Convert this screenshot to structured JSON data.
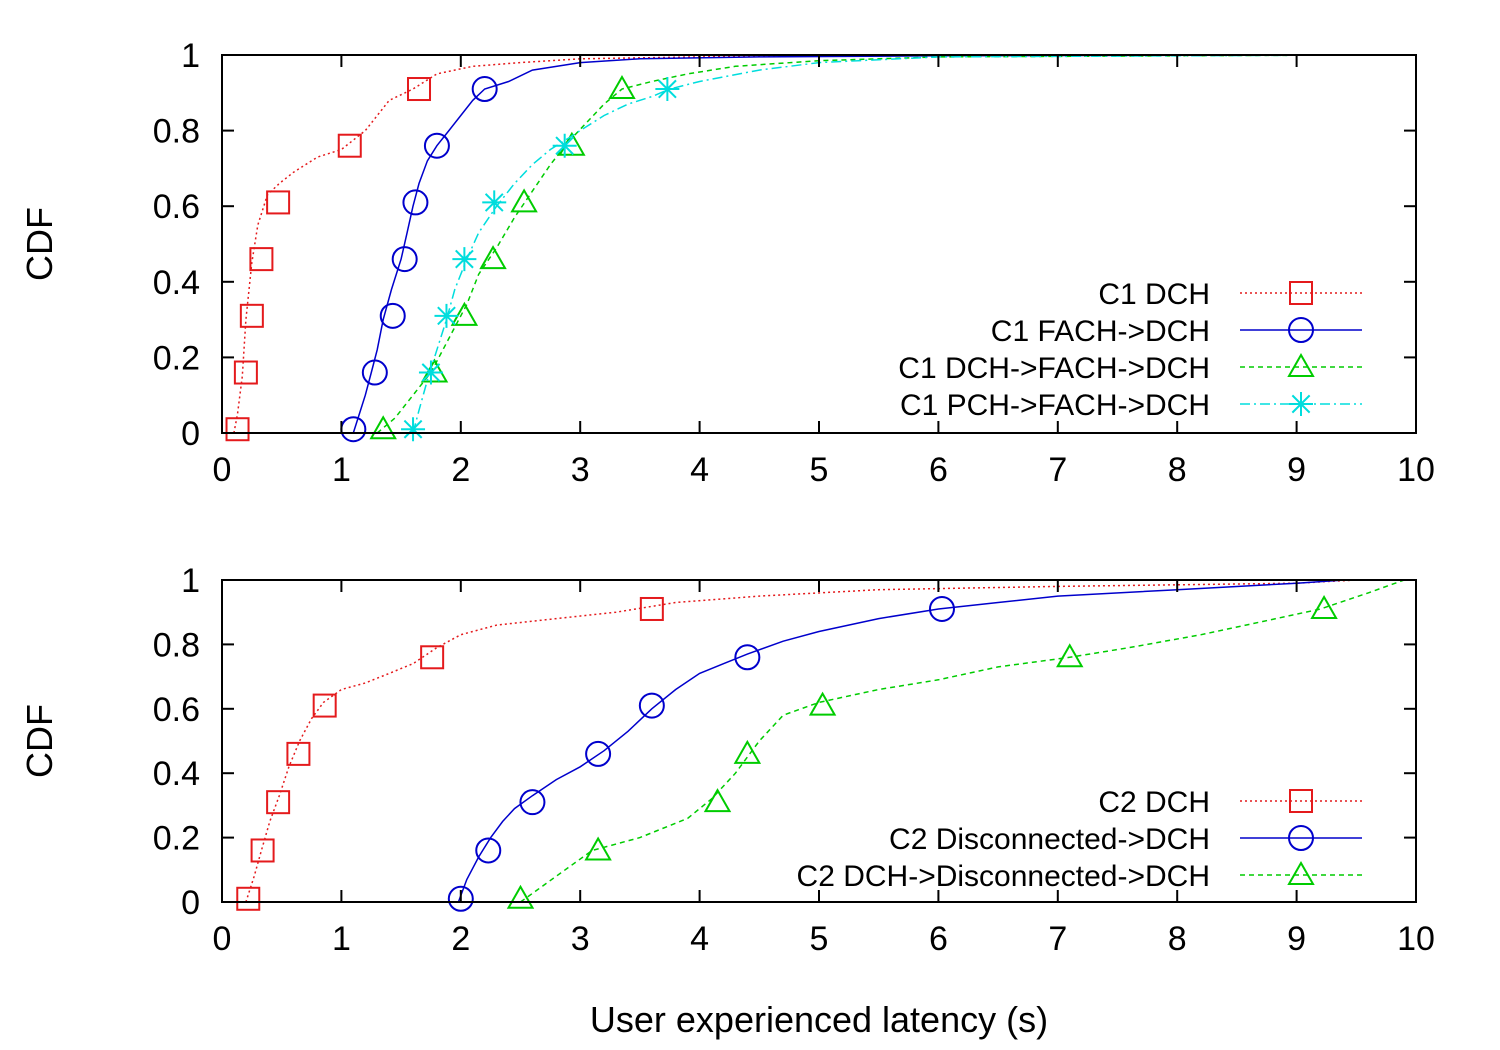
{
  "chart_data": [
    {
      "type": "line",
      "ylabel": "CDF",
      "xlabel": "",
      "xlim": [
        0,
        10
      ],
      "ylim": [
        0,
        1
      ],
      "xticks": [
        "0",
        "1",
        "2",
        "3",
        "4",
        "5",
        "6",
        "7",
        "8",
        "9",
        "10"
      ],
      "yticks": [
        "0",
        "0.2",
        "0.4",
        "0.6",
        "0.8",
        "1"
      ],
      "grid": false,
      "legend_position": "right, lower middle",
      "series": [
        {
          "name": "C1 DCH",
          "color": "#e41a1c",
          "line_style": "dotted",
          "marker": "square",
          "x": [
            0.1,
            0.13,
            0.17,
            0.2,
            0.25,
            0.3,
            0.38,
            0.48,
            0.6,
            0.8,
            1.0,
            1.2,
            1.4,
            1.6,
            1.8,
            2.1,
            2.5,
            3.0,
            4.0,
            5.0,
            6.0,
            9.5
          ],
          "y": [
            0.0,
            0.05,
            0.15,
            0.3,
            0.45,
            0.55,
            0.63,
            0.66,
            0.69,
            0.73,
            0.75,
            0.8,
            0.88,
            0.91,
            0.95,
            0.97,
            0.98,
            0.99,
            0.995,
            0.998,
            0.999,
            1.0
          ],
          "markers_x": [
            0.13,
            0.2,
            0.25,
            0.33,
            0.47,
            1.07,
            1.65
          ],
          "markers_y": [
            0.01,
            0.16,
            0.31,
            0.46,
            0.61,
            0.76,
            0.91
          ]
        },
        {
          "name": "C1 FACH->DCH",
          "color": "#0000cc",
          "line_style": "solid",
          "marker": "circle",
          "x": [
            1.1,
            1.15,
            1.2,
            1.25,
            1.3,
            1.35,
            1.42,
            1.5,
            1.55,
            1.6,
            1.65,
            1.72,
            1.8,
            1.9,
            2.0,
            2.1,
            2.2,
            2.4,
            2.6,
            3.0,
            3.5,
            4.5,
            6.0,
            9.5
          ],
          "y": [
            0.0,
            0.05,
            0.1,
            0.16,
            0.22,
            0.3,
            0.38,
            0.46,
            0.53,
            0.6,
            0.66,
            0.72,
            0.76,
            0.8,
            0.84,
            0.88,
            0.91,
            0.93,
            0.96,
            0.98,
            0.99,
            0.995,
            0.998,
            1.0
          ],
          "markers_x": [
            1.1,
            1.28,
            1.43,
            1.53,
            1.62,
            1.8,
            2.2
          ],
          "markers_y": [
            0.01,
            0.16,
            0.31,
            0.46,
            0.61,
            0.76,
            0.91
          ]
        },
        {
          "name": "C1 DCH->FACH->DCH",
          "color": "#00cc00",
          "line_style": "dashed",
          "marker": "triangle",
          "x": [
            1.3,
            1.45,
            1.6,
            1.75,
            1.85,
            1.95,
            2.05,
            2.15,
            2.3,
            2.45,
            2.6,
            2.75,
            2.9,
            3.05,
            3.2,
            3.35,
            3.6,
            3.9,
            4.3,
            5.0,
            6.0,
            9.5
          ],
          "y": [
            0.0,
            0.04,
            0.1,
            0.16,
            0.22,
            0.28,
            0.34,
            0.42,
            0.49,
            0.57,
            0.64,
            0.71,
            0.77,
            0.82,
            0.87,
            0.91,
            0.93,
            0.95,
            0.97,
            0.985,
            0.995,
            1.0
          ],
          "markers_x": [
            1.35,
            1.78,
            2.03,
            2.27,
            2.53,
            2.93,
            3.35
          ],
          "markers_y": [
            0.01,
            0.16,
            0.31,
            0.46,
            0.61,
            0.76,
            0.91
          ]
        },
        {
          "name": "C1 PCH->FACH->DCH",
          "color": "#00dddd",
          "line_style": "dash-dot",
          "marker": "asterisk",
          "x": [
            1.6,
            1.65,
            1.72,
            1.8,
            1.88,
            1.95,
            2.05,
            2.15,
            2.3,
            2.45,
            2.6,
            2.75,
            2.9,
            3.05,
            3.2,
            3.4,
            3.6,
            3.75,
            4.0,
            4.5,
            5.0,
            6.0,
            9.5
          ],
          "y": [
            0.0,
            0.06,
            0.14,
            0.22,
            0.3,
            0.38,
            0.46,
            0.53,
            0.6,
            0.66,
            0.71,
            0.75,
            0.78,
            0.81,
            0.84,
            0.87,
            0.89,
            0.91,
            0.93,
            0.96,
            0.98,
            0.995,
            1.0
          ],
          "markers_x": [
            1.6,
            1.75,
            1.88,
            2.03,
            2.28,
            2.87,
            3.73
          ],
          "markers_y": [
            0.01,
            0.16,
            0.31,
            0.46,
            0.61,
            0.76,
            0.91
          ]
        }
      ],
      "legend": [
        {
          "label": "C1 DCH"
        },
        {
          "label": "C1 FACH->DCH"
        },
        {
          "label": "C1 DCH->FACH->DCH"
        },
        {
          "label": "C1 PCH->FACH->DCH"
        }
      ]
    },
    {
      "type": "line",
      "ylabel": "CDF",
      "xlabel": "User experienced latency (s)",
      "xlim": [
        0,
        10
      ],
      "ylim": [
        0,
        1
      ],
      "xticks": [
        "0",
        "1",
        "2",
        "3",
        "4",
        "5",
        "6",
        "7",
        "8",
        "9",
        "10"
      ],
      "yticks": [
        "0",
        "0.2",
        "0.4",
        "0.6",
        "0.8",
        "1"
      ],
      "grid": false,
      "legend_position": "right, lower",
      "series": [
        {
          "name": "C2 DCH",
          "color": "#e41a1c",
          "line_style": "dotted",
          "marker": "square",
          "x": [
            0.2,
            0.27,
            0.33,
            0.4,
            0.48,
            0.56,
            0.65,
            0.75,
            0.85,
            1.0,
            1.2,
            1.4,
            1.6,
            1.8,
            2.0,
            2.3,
            2.8,
            3.3,
            3.8,
            4.5,
            5.5,
            7.0,
            9.0,
            9.5
          ],
          "y": [
            0.0,
            0.08,
            0.16,
            0.25,
            0.33,
            0.42,
            0.5,
            0.57,
            0.62,
            0.66,
            0.68,
            0.71,
            0.74,
            0.79,
            0.83,
            0.86,
            0.88,
            0.9,
            0.93,
            0.95,
            0.97,
            0.98,
            0.99,
            1.0
          ],
          "markers_x": [
            0.22,
            0.34,
            0.47,
            0.64,
            0.86,
            1.76,
            3.6
          ],
          "markers_y": [
            0.01,
            0.16,
            0.31,
            0.46,
            0.61,
            0.76,
            0.91
          ]
        },
        {
          "name": "C2 Disconnected->DCH",
          "color": "#0000cc",
          "line_style": "solid",
          "marker": "circle",
          "x": [
            1.98,
            2.05,
            2.15,
            2.25,
            2.35,
            2.45,
            2.6,
            2.8,
            3.0,
            3.2,
            3.4,
            3.6,
            3.8,
            4.0,
            4.2,
            4.4,
            4.7,
            5.0,
            5.5,
            6.0,
            6.5,
            7.0,
            8.0,
            9.0,
            9.4
          ],
          "y": [
            0.0,
            0.07,
            0.14,
            0.2,
            0.25,
            0.29,
            0.33,
            0.38,
            0.42,
            0.47,
            0.53,
            0.6,
            0.66,
            0.71,
            0.74,
            0.77,
            0.81,
            0.84,
            0.88,
            0.91,
            0.93,
            0.95,
            0.97,
            0.99,
            1.0
          ],
          "markers_x": [
            2.0,
            2.23,
            2.6,
            3.15,
            3.6,
            4.4,
            6.03
          ],
          "markers_y": [
            0.01,
            0.16,
            0.31,
            0.46,
            0.61,
            0.76,
            0.91
          ]
        },
        {
          "name": "C2 DCH->Disconnected->DCH",
          "color": "#00cc00",
          "line_style": "dashed",
          "marker": "triangle",
          "x": [
            2.5,
            2.8,
            3.1,
            3.5,
            3.9,
            4.1,
            4.3,
            4.5,
            4.7,
            5.0,
            5.5,
            6.0,
            6.5,
            7.1,
            7.6,
            8.2,
            8.7,
            9.2,
            9.6,
            9.9
          ],
          "y": [
            0.0,
            0.08,
            0.16,
            0.2,
            0.26,
            0.32,
            0.4,
            0.5,
            0.58,
            0.62,
            0.66,
            0.69,
            0.73,
            0.76,
            0.79,
            0.83,
            0.87,
            0.91,
            0.96,
            1.0
          ],
          "markers_x": [
            2.5,
            3.15,
            4.15,
            4.4,
            5.03,
            7.1,
            9.23
          ],
          "markers_y": [
            0.01,
            0.16,
            0.31,
            0.46,
            0.61,
            0.76,
            0.91
          ]
        }
      ],
      "legend": [
        {
          "label": "C2 DCH"
        },
        {
          "label": "C2 Disconnected->DCH"
        },
        {
          "label": "C2 DCH->Disconnected->DCH"
        }
      ]
    }
  ]
}
